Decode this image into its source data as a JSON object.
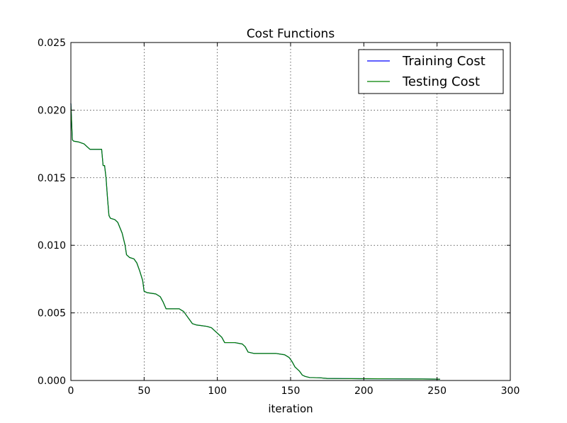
{
  "chart_data": {
    "type": "line",
    "title": "Cost Functions",
    "xlabel": "iteration",
    "ylabel": "",
    "xlim": [
      0,
      300
    ],
    "ylim": [
      0,
      0.025
    ],
    "xticks": [
      "0",
      "50",
      "100",
      "150",
      "200",
      "250",
      "300"
    ],
    "yticks": [
      "0.000",
      "0.005",
      "0.010",
      "0.015",
      "0.020",
      "0.025"
    ],
    "grid": true,
    "legend_position": "top-right",
    "series": [
      {
        "name": "Training Cost",
        "color": "#0000ff",
        "points": [
          [
            0,
            0.0205
          ],
          [
            1,
            0.0178
          ],
          [
            2,
            0.0177
          ],
          [
            5,
            0.01765
          ],
          [
            9,
            0.0175
          ],
          [
            11,
            0.0173
          ],
          [
            13,
            0.0171
          ],
          [
            18,
            0.0171
          ],
          [
            21,
            0.0171
          ],
          [
            22,
            0.0159
          ],
          [
            23,
            0.0159
          ],
          [
            24,
            0.015
          ],
          [
            25,
            0.0135
          ],
          [
            26,
            0.0122
          ],
          [
            27,
            0.012
          ],
          [
            30,
            0.0119
          ],
          [
            32,
            0.0117
          ],
          [
            35,
            0.0109
          ],
          [
            37,
            0.01
          ],
          [
            38,
            0.0093
          ],
          [
            40,
            0.0091
          ],
          [
            43,
            0.009
          ],
          [
            45,
            0.0087
          ],
          [
            47,
            0.0081
          ],
          [
            49,
            0.0074
          ],
          [
            50,
            0.0066
          ],
          [
            52,
            0.0065
          ],
          [
            58,
            0.0064
          ],
          [
            61,
            0.0062
          ],
          [
            63,
            0.0058
          ],
          [
            65,
            0.0053
          ],
          [
            68,
            0.0053
          ],
          [
            74,
            0.0053
          ],
          [
            77,
            0.0051
          ],
          [
            79,
            0.0048
          ],
          [
            81,
            0.0045
          ],
          [
            83,
            0.0042
          ],
          [
            86,
            0.0041
          ],
          [
            93,
            0.004
          ],
          [
            96,
            0.0039
          ],
          [
            98,
            0.0037
          ],
          [
            100,
            0.0035
          ],
          [
            103,
            0.0032
          ],
          [
            105,
            0.0028
          ],
          [
            112,
            0.0028
          ],
          [
            117,
            0.0027
          ],
          [
            119,
            0.0025
          ],
          [
            121,
            0.0021
          ],
          [
            125,
            0.002
          ],
          [
            131,
            0.002
          ],
          [
            140,
            0.002
          ],
          [
            146,
            0.0019
          ],
          [
            149,
            0.0017
          ],
          [
            151,
            0.0014
          ],
          [
            153,
            0.001
          ],
          [
            156,
            0.0007
          ],
          [
            158,
            0.0004
          ],
          [
            160,
            0.0003
          ],
          [
            163,
            0.00022
          ],
          [
            170,
            0.0002
          ],
          [
            175,
            0.00015
          ],
          [
            185,
            0.00014
          ],
          [
            200,
            0.00013
          ],
          [
            220,
            0.00012
          ],
          [
            240,
            0.00011
          ],
          [
            252,
            0.0001
          ]
        ]
      },
      {
        "name": "Testing Cost",
        "color": "#008000",
        "points": [
          [
            0,
            0.0205
          ],
          [
            1,
            0.0178
          ],
          [
            2,
            0.0177
          ],
          [
            5,
            0.01765
          ],
          [
            9,
            0.0175
          ],
          [
            11,
            0.0173
          ],
          [
            13,
            0.0171
          ],
          [
            18,
            0.0171
          ],
          [
            21,
            0.0171
          ],
          [
            22,
            0.0159
          ],
          [
            23,
            0.0159
          ],
          [
            24,
            0.015
          ],
          [
            25,
            0.0135
          ],
          [
            26,
            0.0122
          ],
          [
            27,
            0.012
          ],
          [
            30,
            0.0119
          ],
          [
            32,
            0.0117
          ],
          [
            35,
            0.0109
          ],
          [
            37,
            0.01
          ],
          [
            38,
            0.0093
          ],
          [
            40,
            0.0091
          ],
          [
            43,
            0.009
          ],
          [
            45,
            0.0087
          ],
          [
            47,
            0.0081
          ],
          [
            49,
            0.0074
          ],
          [
            50,
            0.0066
          ],
          [
            52,
            0.0065
          ],
          [
            58,
            0.0064
          ],
          [
            61,
            0.0062
          ],
          [
            63,
            0.0058
          ],
          [
            65,
            0.0053
          ],
          [
            68,
            0.0053
          ],
          [
            74,
            0.0053
          ],
          [
            77,
            0.0051
          ],
          [
            79,
            0.0048
          ],
          [
            81,
            0.0045
          ],
          [
            83,
            0.0042
          ],
          [
            86,
            0.0041
          ],
          [
            93,
            0.004
          ],
          [
            96,
            0.0039
          ],
          [
            98,
            0.0037
          ],
          [
            100,
            0.0035
          ],
          [
            103,
            0.0032
          ],
          [
            105,
            0.0028
          ],
          [
            112,
            0.0028
          ],
          [
            117,
            0.0027
          ],
          [
            119,
            0.0025
          ],
          [
            121,
            0.0021
          ],
          [
            125,
            0.002
          ],
          [
            131,
            0.002
          ],
          [
            140,
            0.002
          ],
          [
            146,
            0.0019
          ],
          [
            149,
            0.0017
          ],
          [
            151,
            0.0014
          ],
          [
            153,
            0.001
          ],
          [
            156,
            0.0007
          ],
          [
            158,
            0.0004
          ],
          [
            160,
            0.0003
          ],
          [
            163,
            0.00022
          ],
          [
            170,
            0.0002
          ],
          [
            175,
            0.00015
          ],
          [
            185,
            0.00014
          ],
          [
            200,
            0.00013
          ],
          [
            220,
            0.00012
          ],
          [
            240,
            0.00011
          ],
          [
            252,
            0.0001
          ]
        ]
      }
    ]
  }
}
